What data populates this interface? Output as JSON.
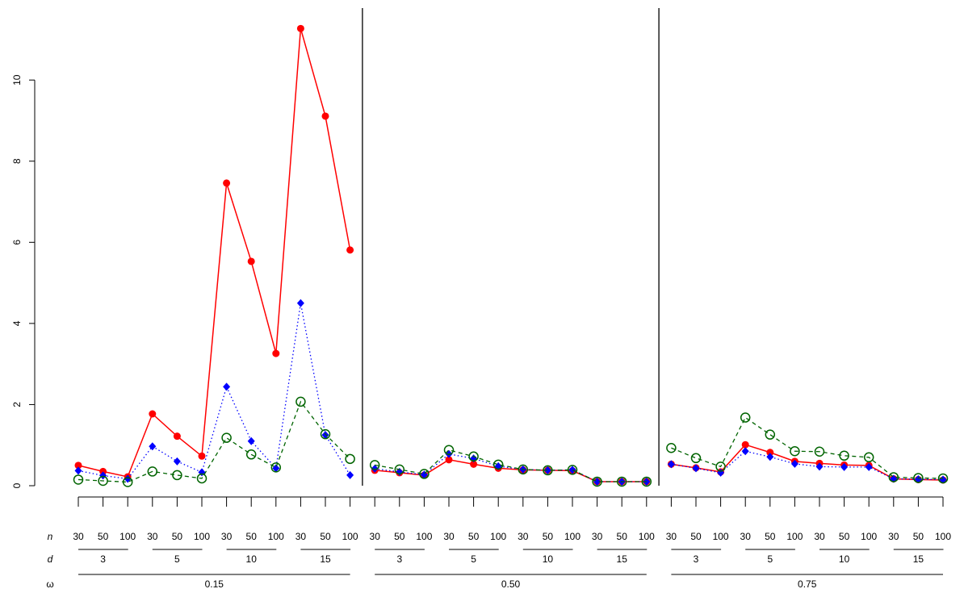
{
  "chart_data": {
    "type": "line",
    "title": "",
    "xlabel": "",
    "ylabel": "",
    "ylim": [
      0,
      11.5
    ],
    "yticks": [
      0,
      2,
      4,
      6,
      8,
      10
    ],
    "grid": false,
    "legend": "none",
    "row_labels": {
      "n": "n",
      "d": "d",
      "omega": "ω"
    },
    "n_labels": [
      "30",
      "50",
      "100"
    ],
    "d_labels": [
      "3",
      "5",
      "10",
      "15"
    ],
    "omega_labels": [
      "0.15",
      "0.50",
      "0.75"
    ],
    "series": [
      {
        "color": "#ff0000",
        "linestyle": "solid",
        "marker": "filled-circle",
        "values": [
          0.5,
          0.35,
          0.22,
          1.77,
          1.22,
          0.73,
          7.46,
          5.53,
          3.26,
          11.27,
          9.11,
          5.81,
          0.38,
          0.32,
          0.26,
          0.64,
          0.53,
          0.43,
          0.39,
          0.38,
          0.37,
          0.1,
          0.1,
          0.1,
          0.53,
          0.44,
          0.34,
          1.01,
          0.82,
          0.6,
          0.55,
          0.51,
          0.5,
          0.17,
          0.15,
          0.14
        ]
      },
      {
        "color": "#0000ff",
        "linestyle": "dotted",
        "marker": "filled-diamond",
        "values": [
          0.37,
          0.25,
          0.17,
          0.97,
          0.6,
          0.33,
          2.44,
          1.1,
          0.43,
          4.5,
          1.25,
          0.26,
          0.42,
          0.34,
          0.27,
          0.78,
          0.67,
          0.48,
          0.4,
          0.38,
          0.39,
          0.1,
          0.1,
          0.1,
          0.53,
          0.43,
          0.32,
          0.85,
          0.71,
          0.54,
          0.47,
          0.46,
          0.46,
          0.17,
          0.16,
          0.15
        ]
      },
      {
        "color": "#006400",
        "linestyle": "dashed",
        "marker": "open-circle",
        "values": [
          0.15,
          0.12,
          0.09,
          0.35,
          0.26,
          0.18,
          1.18,
          0.77,
          0.45,
          2.07,
          1.27,
          0.66,
          0.51,
          0.4,
          0.29,
          0.88,
          0.72,
          0.52,
          0.4,
          0.38,
          0.39,
          0.1,
          0.1,
          0.1,
          0.93,
          0.68,
          0.47,
          1.68,
          1.26,
          0.85,
          0.84,
          0.74,
          0.7,
          0.21,
          0.19,
          0.18
        ]
      }
    ]
  }
}
